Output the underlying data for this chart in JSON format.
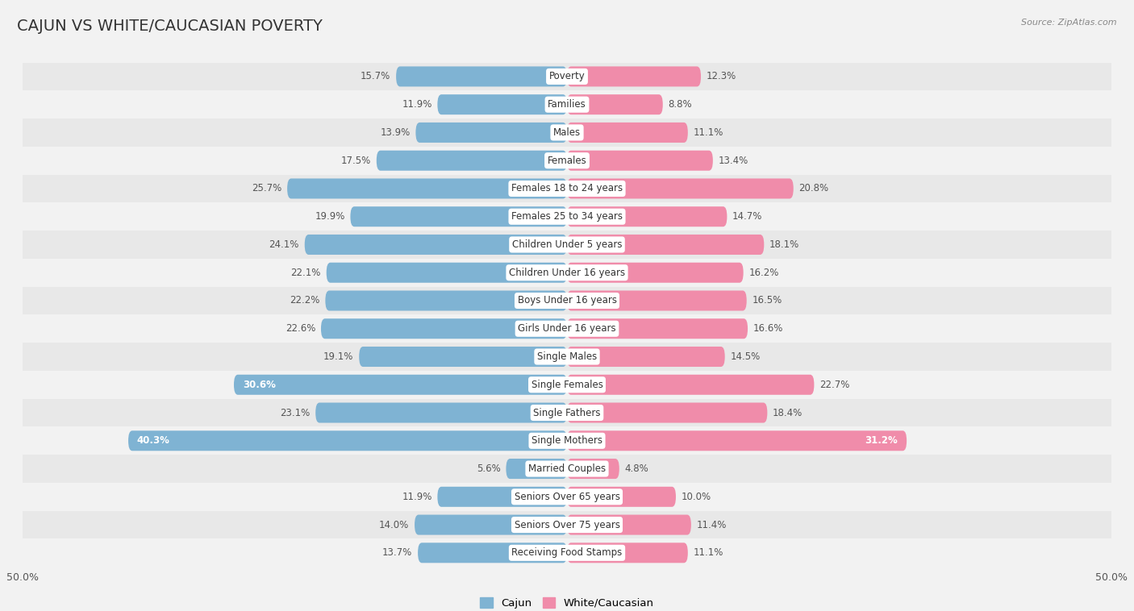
{
  "title": "CAJUN VS WHITE/CAUCASIAN POVERTY",
  "source": "Source: ZipAtlas.com",
  "categories": [
    "Poverty",
    "Families",
    "Males",
    "Females",
    "Females 18 to 24 years",
    "Females 25 to 34 years",
    "Children Under 5 years",
    "Children Under 16 years",
    "Boys Under 16 years",
    "Girls Under 16 years",
    "Single Males",
    "Single Females",
    "Single Fathers",
    "Single Mothers",
    "Married Couples",
    "Seniors Over 65 years",
    "Seniors Over 75 years",
    "Receiving Food Stamps"
  ],
  "cajun_values": [
    15.7,
    11.9,
    13.9,
    17.5,
    25.7,
    19.9,
    24.1,
    22.1,
    22.2,
    22.6,
    19.1,
    30.6,
    23.1,
    40.3,
    5.6,
    11.9,
    14.0,
    13.7
  ],
  "white_values": [
    12.3,
    8.8,
    11.1,
    13.4,
    20.8,
    14.7,
    18.1,
    16.2,
    16.5,
    16.6,
    14.5,
    22.7,
    18.4,
    31.2,
    4.8,
    10.0,
    11.4,
    11.1
  ],
  "cajun_color": "#7fb3d3",
  "white_color": "#f08caa",
  "background_color": "#f2f2f2",
  "row_color_light": "#f2f2f2",
  "row_color_dark": "#e8e8e8",
  "axis_max": 50.0,
  "title_fontsize": 14,
  "label_fontsize": 8.5,
  "value_fontsize": 8.5,
  "bar_height": 0.72,
  "legend_cajun": "Cajun",
  "legend_white": "White/Caucasian",
  "bold_cajun_indices": [
    11,
    13
  ],
  "bold_white_indices": [
    13
  ]
}
